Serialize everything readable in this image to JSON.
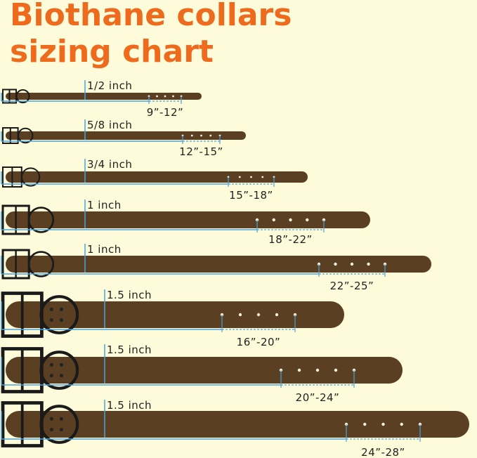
{
  "title": {
    "line1": "Biothane collars",
    "line2": "sizing chart"
  },
  "collars": [
    {
      "width": "1/2 inch",
      "range": "9”-12”"
    },
    {
      "width": "5/8 inch",
      "range": "12”-15”"
    },
    {
      "width": "3/4 inch",
      "range": "15”-18”"
    },
    {
      "width": "1 inch",
      "range": "18”-22”"
    },
    {
      "width": "1 inch",
      "range": "22”-25”"
    },
    {
      "width": "1.5 inch",
      "range": "16”-20”"
    },
    {
      "width": "1.5 inch",
      "range": "20”-24”"
    },
    {
      "width": "1.5 inch",
      "range": "24”-28”"
    }
  ]
}
